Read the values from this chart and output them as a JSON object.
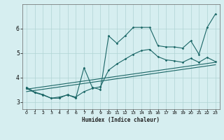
{
  "xlabel": "Humidex (Indice chaleur)",
  "background_color": "#d6eef0",
  "grid_color": "#b0d4d4",
  "line_color": "#1a6666",
  "xlim": [
    -0.5,
    23.5
  ],
  "ylim": [
    2.7,
    7.0
  ],
  "xticks": [
    0,
    1,
    2,
    3,
    4,
    5,
    6,
    7,
    8,
    9,
    10,
    11,
    12,
    13,
    14,
    15,
    16,
    17,
    18,
    19,
    20,
    21,
    22,
    23
  ],
  "yticks": [
    3,
    4,
    5,
    6
  ],
  "line1_x": [
    0,
    1,
    2,
    3,
    4,
    5,
    6,
    7,
    8,
    9,
    10,
    11,
    12,
    13,
    14,
    15,
    16,
    17,
    18,
    19,
    20,
    21,
    22,
    23
  ],
  "line1_y": [
    3.6,
    3.4,
    3.3,
    3.15,
    3.15,
    3.3,
    3.15,
    4.4,
    3.6,
    3.5,
    5.7,
    5.4,
    5.7,
    6.05,
    6.05,
    6.05,
    5.3,
    5.25,
    5.25,
    5.2,
    5.5,
    4.95,
    6.05,
    6.6
  ],
  "line2_x": [
    0,
    1,
    2,
    3,
    4,
    5,
    6,
    7,
    8,
    9,
    10,
    11,
    12,
    13,
    14,
    15,
    16,
    17,
    18,
    19,
    20,
    21,
    22,
    23
  ],
  "line2_y": [
    3.55,
    3.38,
    3.28,
    3.15,
    3.2,
    3.28,
    3.2,
    3.42,
    3.55,
    3.62,
    4.3,
    4.55,
    4.75,
    4.95,
    5.1,
    5.15,
    4.85,
    4.72,
    4.68,
    4.62,
    4.78,
    4.62,
    4.82,
    4.65
  ],
  "line3_x": [
    0,
    23
  ],
  "line3_y": [
    3.52,
    4.62
  ],
  "line4_x": [
    0,
    23
  ],
  "line4_y": [
    3.42,
    4.52
  ]
}
